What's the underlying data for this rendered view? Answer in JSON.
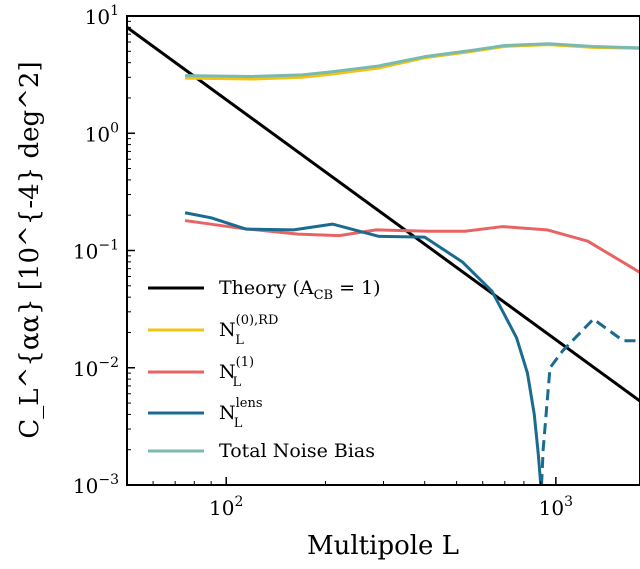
{
  "chart_data": {
    "type": "line",
    "xlabel": "Multipole L",
    "ylabel": "C_L^{αα} [10^{-4} deg^2]",
    "xscale": "log",
    "yscale": "log",
    "xlim": [
      50,
      1800
    ],
    "ylim": [
      0.001,
      10
    ],
    "grid": false,
    "legend_position": "bottom-left",
    "x_ticks": [
      {
        "value": 100,
        "base": "10",
        "exp": "2"
      },
      {
        "value": 1000,
        "base": "10",
        "exp": "3"
      }
    ],
    "y_ticks": [
      {
        "value": 10,
        "base": "10",
        "exp": "1"
      },
      {
        "value": 1,
        "base": "10",
        "exp": "0"
      },
      {
        "value": 0.1,
        "base": "10",
        "exp": "−1"
      },
      {
        "value": 0.01,
        "base": "10",
        "exp": "−2"
      },
      {
        "value": 0.001,
        "base": "10",
        "exp": "−3"
      }
    ],
    "series": [
      {
        "name": "Theory (A_CB = 1)",
        "legend_main": "Theory (A",
        "legend_sub": "CB",
        "legend_rest": " = 1)",
        "color": "#000000",
        "x": [
          50,
          1800
        ],
        "y": [
          8.0,
          0.0052
        ]
      },
      {
        "name": "N_L^{(0),RD}",
        "legend_main": "N",
        "legend_sub": "L",
        "legend_sup": "(0),RD",
        "color": "#f2c30f",
        "x": [
          75,
          120,
          170,
          210,
          290,
          400,
          560,
          700,
          950,
          1300,
          1800
        ],
        "y": [
          2.95,
          2.9,
          3.0,
          3.2,
          3.6,
          4.4,
          5.0,
          5.5,
          5.7,
          5.4,
          5.3
        ]
      },
      {
        "name": "N_L^{(1)}",
        "legend_main": "N",
        "legend_sub": "L",
        "legend_sup": "(1)",
        "color": "#e86464",
        "x": [
          75,
          110,
          165,
          220,
          285,
          410,
          530,
          690,
          940,
          1250,
          1800
        ],
        "y": [
          0.18,
          0.155,
          0.138,
          0.134,
          0.15,
          0.146,
          0.146,
          0.16,
          0.15,
          0.12,
          0.065
        ]
      },
      {
        "name": "N_L^{lens}",
        "legend_main": "N",
        "legend_sub": "L",
        "legend_sup": "lens",
        "color": "#1a6b8f",
        "x": [
          75,
          90,
          115,
          160,
          210,
          290,
          400,
          520,
          640,
          700,
          760,
          820,
          860,
          885,
          900
        ],
        "y": [
          0.21,
          0.19,
          0.152,
          0.15,
          0.168,
          0.132,
          0.13,
          0.08,
          0.045,
          0.028,
          0.018,
          0.009,
          0.004,
          0.0018,
          0.001
        ],
        "negative_dashed": {
          "x": [
            905,
            915,
            960,
            1050,
            1300,
            1600,
            1800
          ],
          "y": [
            0.001,
            0.002,
            0.01,
            0.014,
            0.026,
            0.017,
            0.017
          ]
        }
      },
      {
        "name": "Total Noise Bias",
        "legend_main": "Total Noise Bias",
        "color": "#7ab8b0",
        "x": [
          75,
          120,
          170,
          210,
          290,
          400,
          560,
          700,
          950,
          1300,
          1800
        ],
        "y": [
          3.1,
          3.05,
          3.15,
          3.35,
          3.75,
          4.5,
          5.1,
          5.6,
          5.8,
          5.5,
          5.35
        ]
      }
    ]
  }
}
